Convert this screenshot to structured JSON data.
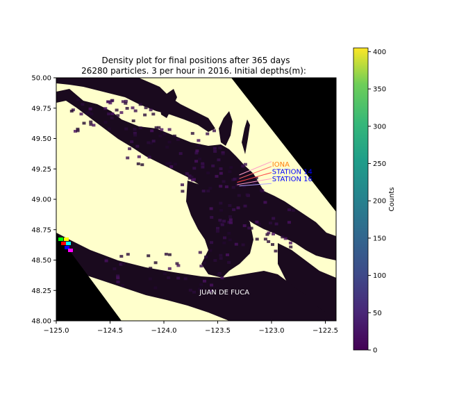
{
  "chart_data": {
    "type": "heatmap",
    "title_line1": "Density plot for final positions after 365 days",
    "title_line2": "26280 particles. 3 per hour in 2016. Initial depths(m):",
    "xlim": [
      -125.0,
      -122.4
    ],
    "ylim": [
      48.0,
      50.0
    ],
    "x_ticks": [
      -125.0,
      -124.5,
      -124.0,
      -123.5,
      -123.0,
      -122.5
    ],
    "x_tick_labels": [
      "−125.0",
      "−124.5",
      "−124.0",
      "−123.5",
      "−123.0",
      "−122.5"
    ],
    "y_ticks": [
      48.0,
      48.25,
      48.5,
      48.75,
      49.0,
      49.25,
      49.5,
      49.75,
      50.0
    ],
    "y_tick_labels": [
      "48.00",
      "48.25",
      "48.50",
      "48.75",
      "49.00",
      "49.25",
      "49.50",
      "49.75",
      "50.00"
    ],
    "colorbar": {
      "label": "Counts",
      "min": 0,
      "max": 405,
      "ticks": [
        0,
        50,
        100,
        150,
        200,
        250,
        300,
        350,
        400
      ],
      "colormap": "viridis"
    },
    "land_color": "#ffffcc",
    "water_color": "#000000",
    "annotations": [
      {
        "text": "IONA",
        "color": "#ff7f0e",
        "lon": -122.995,
        "lat": 49.285
      },
      {
        "text": "STATION 14",
        "color": "#0000ff",
        "lon": -122.995,
        "lat": 49.225
      },
      {
        "text": "STATION 16",
        "color": "#0000ff",
        "lon": -122.995,
        "lat": 49.165
      },
      {
        "text": "JUAN DE FUCA",
        "color": "#ffffff",
        "lon": -123.67,
        "lat": 48.235
      }
    ],
    "release_lines": [
      {
        "color": "#ff9dc8",
        "from": [
          -123.3,
          49.2
        ],
        "to": [
          -123.0,
          49.31
        ]
      },
      {
        "color": "#ff6666",
        "from": [
          -123.3,
          49.17
        ],
        "to": [
          -123.0,
          49.27
        ]
      },
      {
        "color": "#ff4444",
        "from": [
          -123.32,
          49.14
        ],
        "to": [
          -123.0,
          49.22
        ]
      },
      {
        "color": "#ff9dc8",
        "from": [
          -123.32,
          49.12
        ],
        "to": [
          -123.0,
          49.17
        ]
      },
      {
        "color": "#b0a0ff",
        "from": [
          -123.3,
          49.11
        ],
        "to": [
          -123.0,
          49.13
        ]
      }
    ],
    "edge_cells": [
      "#00ff00",
      "#ffff00",
      "#ff0000",
      "#00ffff",
      "#0000ff",
      "#ff00ff"
    ]
  }
}
